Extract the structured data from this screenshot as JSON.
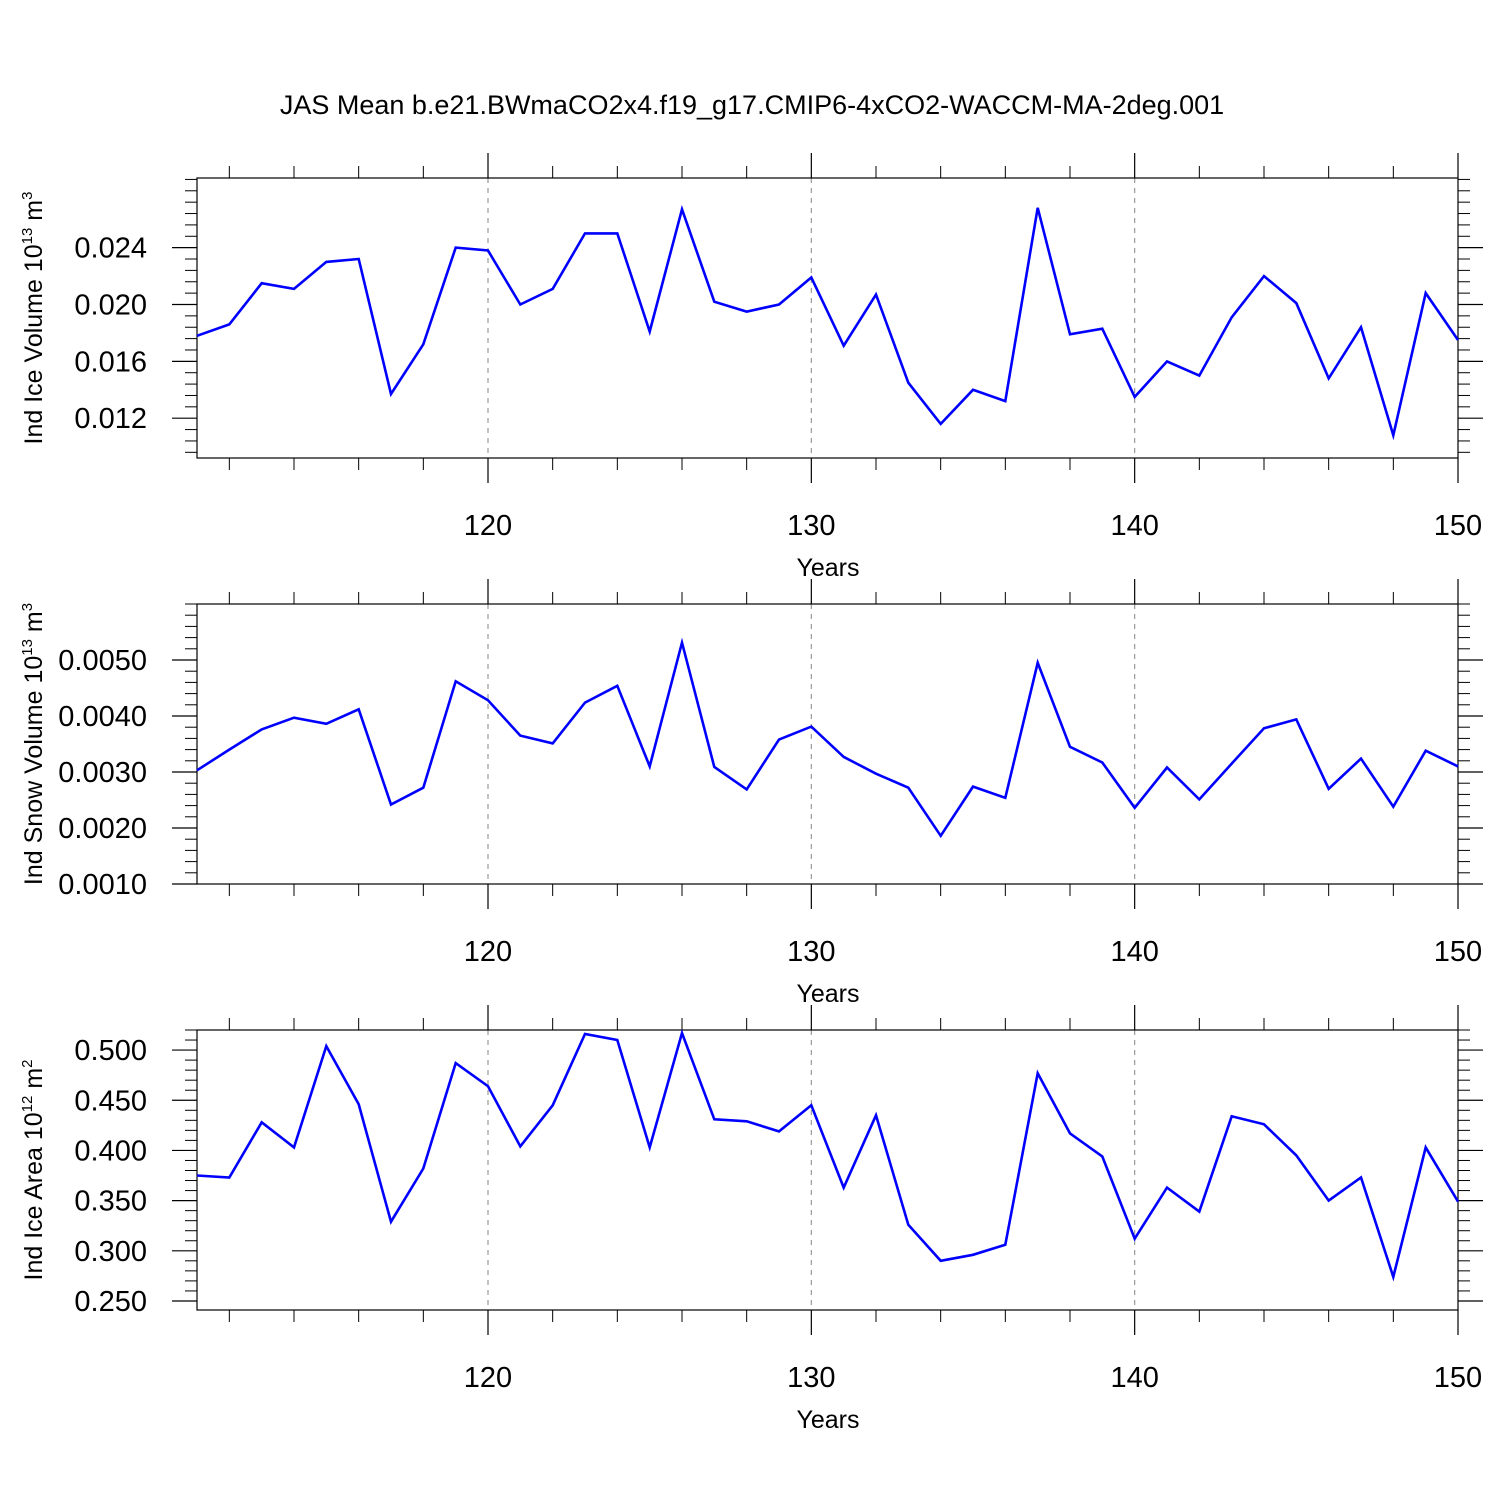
{
  "figure": {
    "title": "JAS Mean b.e21.BWmaCO2x4.f19_g17.CMIP6-4xCO2-WACCM-MA-2deg.001",
    "line_color": "#0000ff",
    "grid_color": "#999999"
  },
  "chart_data": [
    {
      "type": "line",
      "ylabel": {
        "text": "Ind Ice Volume 10",
        "exp": "13",
        "unit": " m",
        "unit_exp": "3"
      },
      "xlabel": "Years",
      "xlim": [
        111,
        150
      ],
      "ylim": [
        0.0092,
        0.0289
      ],
      "xticks": [
        120,
        130,
        140,
        150
      ],
      "xticklabels": [
        "120",
        "130",
        "140",
        "150"
      ],
      "yticks": [
        0.012,
        0.016,
        0.02,
        0.024
      ],
      "yticklabels": [
        "0.012",
        "0.016",
        "0.020",
        "0.024"
      ],
      "series": [
        {
          "name": "Ind Ice Volume",
          "x": [
            111,
            112,
            113,
            114,
            115,
            116,
            117,
            118,
            119,
            120,
            121,
            122,
            123,
            124,
            125,
            126,
            127,
            128,
            129,
            130,
            131,
            132,
            133,
            134,
            135,
            136,
            137,
            138,
            139,
            140,
            141,
            142,
            143,
            144,
            145,
            146,
            147,
            148,
            149,
            150
          ],
          "values": [
            0.0178,
            0.0186,
            0.0215,
            0.0211,
            0.023,
            0.0232,
            0.0137,
            0.0172,
            0.024,
            0.0238,
            0.02,
            0.0211,
            0.025,
            0.025,
            0.0181,
            0.0267,
            0.0202,
            0.0195,
            0.02,
            0.0219,
            0.0171,
            0.0207,
            0.0145,
            0.0116,
            0.014,
            0.0132,
            0.0268,
            0.0179,
            0.0183,
            0.0135,
            0.016,
            0.015,
            0.0191,
            0.022,
            0.0201,
            0.0148,
            0.0184,
            0.0108,
            0.0208,
            0.0175
          ]
        }
      ]
    },
    {
      "type": "line",
      "ylabel": {
        "text": "Ind Snow Volume 10",
        "exp": "13",
        "unit": " m",
        "unit_exp": "3"
      },
      "xlabel": "Years",
      "xlim": [
        111,
        150
      ],
      "ylim": [
        0.001,
        0.006
      ],
      "xticks": [
        120,
        130,
        140,
        150
      ],
      "xticklabels": [
        "120",
        "130",
        "140",
        "150"
      ],
      "yticks": [
        0.001,
        0.002,
        0.003,
        0.004,
        0.005
      ],
      "yticklabels": [
        "0.0010",
        "0.0020",
        "0.0030",
        "0.0040",
        "0.0050"
      ],
      "series": [
        {
          "name": "Ind Snow Volume",
          "x": [
            111,
            112,
            113,
            114,
            115,
            116,
            117,
            118,
            119,
            120,
            121,
            122,
            123,
            124,
            125,
            126,
            127,
            128,
            129,
            130,
            131,
            132,
            133,
            134,
            135,
            136,
            137,
            138,
            139,
            140,
            141,
            142,
            143,
            144,
            145,
            146,
            147,
            148,
            149,
            150
          ],
          "values": [
            0.00303,
            0.0034,
            0.00376,
            0.00397,
            0.00386,
            0.00412,
            0.00242,
            0.00272,
            0.00462,
            0.00428,
            0.00365,
            0.00351,
            0.00424,
            0.00454,
            0.0031,
            0.00531,
            0.00309,
            0.00269,
            0.00358,
            0.00381,
            0.00327,
            0.00297,
            0.00272,
            0.00186,
            0.00274,
            0.00254,
            0.00495,
            0.00345,
            0.00317,
            0.00236,
            0.00308,
            0.00251,
            0.00315,
            0.00378,
            0.00394,
            0.0027,
            0.00324,
            0.00238,
            0.00338,
            0.0031
          ]
        }
      ]
    },
    {
      "type": "line",
      "ylabel": {
        "text": "Ind Ice Area 10",
        "exp": "12",
        "unit": " m",
        "unit_exp": "2"
      },
      "xlabel": "Years",
      "xlim": [
        111,
        150
      ],
      "ylim": [
        0.241,
        0.52
      ],
      "xticks": [
        120,
        130,
        140,
        150
      ],
      "xticklabels": [
        "120",
        "130",
        "140",
        "150"
      ],
      "yticks": [
        0.25,
        0.3,
        0.35,
        0.4,
        0.45,
        0.5
      ],
      "yticklabels": [
        "0.250",
        "0.300",
        "0.350",
        "0.400",
        "0.450",
        "0.500"
      ],
      "series": [
        {
          "name": "Ind Ice Area",
          "x": [
            111,
            112,
            113,
            114,
            115,
            116,
            117,
            118,
            119,
            120,
            121,
            122,
            123,
            124,
            125,
            126,
            127,
            128,
            129,
            130,
            131,
            132,
            133,
            134,
            135,
            136,
            137,
            138,
            139,
            140,
            141,
            142,
            143,
            144,
            145,
            146,
            147,
            148,
            149,
            150
          ],
          "values": [
            0.375,
            0.373,
            0.428,
            0.403,
            0.504,
            0.446,
            0.329,
            0.382,
            0.487,
            0.464,
            0.404,
            0.445,
            0.516,
            0.51,
            0.403,
            0.517,
            0.431,
            0.429,
            0.419,
            0.445,
            0.363,
            0.435,
            0.326,
            0.29,
            0.296,
            0.306,
            0.477,
            0.417,
            0.394,
            0.312,
            0.363,
            0.339,
            0.434,
            0.426,
            0.395,
            0.35,
            0.373,
            0.274,
            0.403,
            0.349
          ]
        }
      ]
    }
  ]
}
